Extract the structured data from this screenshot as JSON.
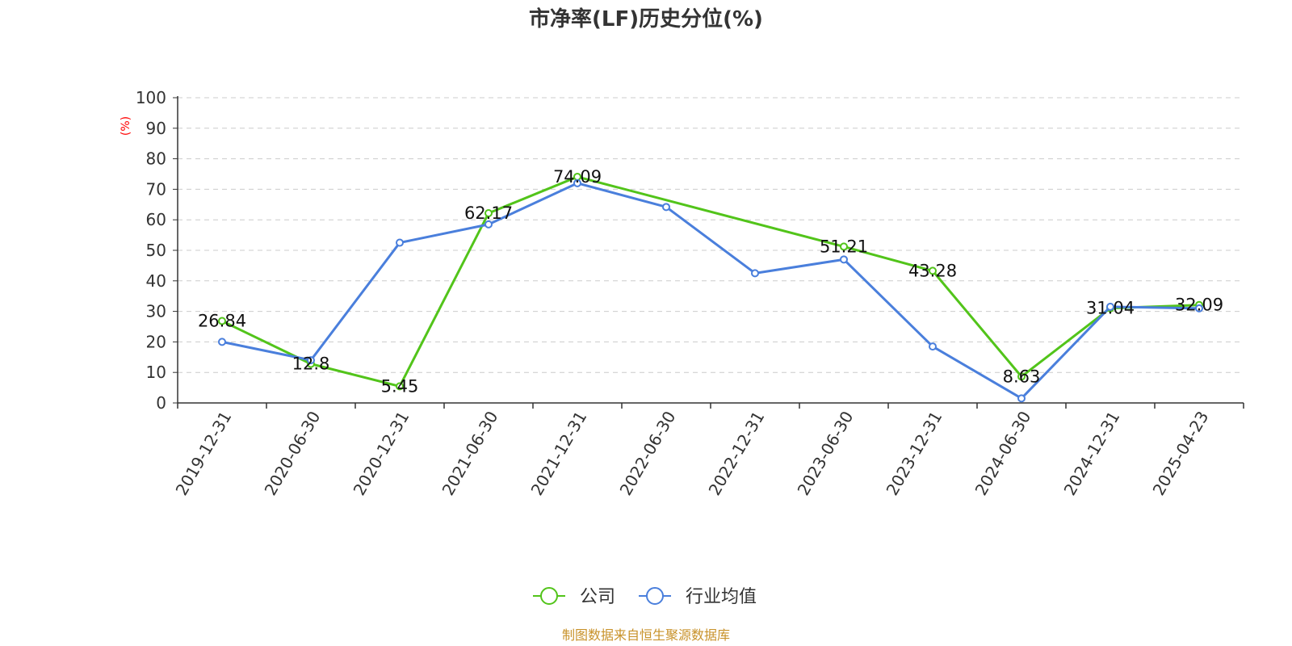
{
  "chart_data": {
    "type": "line",
    "title": "市净率(LF)历史分位(%)",
    "ylabel": "(%)",
    "xlabel": "",
    "ylim": [
      0,
      100
    ],
    "yticks": [
      0,
      10,
      20,
      30,
      40,
      50,
      60,
      70,
      80,
      90,
      100
    ],
    "categories": [
      "2019-12-31",
      "2020-06-30",
      "2020-12-31",
      "2021-06-30",
      "2021-12-31",
      "2022-06-30",
      "2022-12-31",
      "2023-06-30",
      "2023-12-31",
      "2024-06-30",
      "2024-12-31",
      "2025-04-23"
    ],
    "grid": true,
    "legend_position": "bottom",
    "series": [
      {
        "name": "公司",
        "color": "#52c41a",
        "values": [
          26.84,
          12.8,
          5.45,
          62.17,
          74.09,
          null,
          null,
          51.21,
          43.28,
          8.63,
          31.04,
          32.09
        ],
        "labels": [
          "26.84",
          "12.8",
          "5.45",
          "62.17",
          "74.09",
          "",
          "",
          "51.21",
          "43.28",
          "8.63",
          "31.04",
          "32.09"
        ]
      },
      {
        "name": "行业均值",
        "color": "#4a7fdc",
        "values": [
          20.0,
          14.0,
          52.5,
          58.5,
          72.0,
          64.2,
          42.5,
          47.0,
          18.5,
          1.5,
          31.5,
          31.0
        ]
      }
    ],
    "source": "制图数据来自恒生聚源数据库"
  }
}
